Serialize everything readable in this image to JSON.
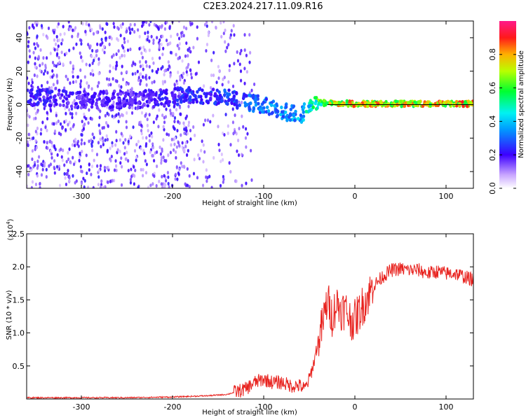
{
  "page_title": "C2E3.2024.217.11.09.R16",
  "colors": {
    "series": "#e8221e",
    "ridge_low": "#6a00ff",
    "ridge_mid": "#00e5ff",
    "ridge_high": "#ff2020",
    "baseline": "#000000"
  },
  "chart_data": [
    {
      "type": "heatmap",
      "title": "",
      "xlabel": "Height of straight line (km)",
      "ylabel": "Frequency (Hz)",
      "xlim": [
        -360,
        130
      ],
      "ylim": [
        -50,
        50
      ],
      "x_ticks": [
        -300,
        -200,
        -100,
        0,
        100
      ],
      "x_tick_labels": [
        "-300",
        "-200",
        "-100",
        "0",
        "100"
      ],
      "y_ticks": [
        -40,
        -20,
        0,
        20,
        40
      ],
      "y_tick_labels": [
        "-40",
        "-20",
        "0",
        "20",
        "40"
      ],
      "colorbar": {
        "label": "Normalized spectral amplitude",
        "range": [
          0,
          1
        ],
        "ticks": [
          0.0,
          0.2,
          0.4,
          0.6,
          0.8
        ],
        "tick_labels": [
          "0.0",
          "0.2",
          "0.4",
          "0.6",
          "0.8"
        ]
      },
      "ridge": {
        "height_km": [
          -360,
          -330,
          -300,
          -270,
          -240,
          -210,
          -180,
          -150,
          -120,
          -100,
          -80,
          -60,
          -40,
          -30,
          -20,
          0,
          50,
          100,
          130
        ],
        "frequency_hz": [
          4,
          4,
          3,
          3,
          3,
          4,
          6,
          5,
          2,
          0,
          -4,
          -6,
          1,
          1,
          1,
          0.5,
          0.5,
          0.5,
          0.5
        ],
        "amplitude": [
          0.25,
          0.25,
          0.22,
          0.22,
          0.22,
          0.25,
          0.28,
          0.3,
          0.35,
          0.38,
          0.42,
          0.45,
          0.7,
          0.8,
          0.85,
          0.9,
          0.9,
          0.9,
          0.9
        ]
      }
    },
    {
      "type": "line",
      "title": "",
      "xlabel": "Height of straight line (km)",
      "ylabel": "SNR (10 * v/v)",
      "y_multiplier": "(x10",
      "y_multiplier_exp": "4",
      "y_multiplier_close": ")",
      "xlim": [
        -360,
        130
      ],
      "ylim": [
        0,
        2.5
      ],
      "x_ticks": [
        -300,
        -200,
        -100,
        0,
        100
      ],
      "x_tick_labels": [
        "-300",
        "-200",
        "-100",
        "0",
        "100"
      ],
      "y_ticks": [
        0.5,
        1.0,
        1.5,
        2.0,
        2.5
      ],
      "y_tick_labels": [
        "0.5",
        "1.0",
        "1.5",
        "2.0",
        "2.5"
      ],
      "series": [
        {
          "x": [
            -360,
            -300,
            -250,
            -200,
            -160,
            -140,
            -120,
            -110,
            -100,
            -90,
            -80,
            -70,
            -60,
            -55,
            -50,
            -45,
            -40,
            -35,
            -30,
            -25,
            -20,
            -15,
            -10,
            -5,
            0,
            10,
            20,
            30,
            40,
            50,
            60,
            70,
            80,
            90,
            100,
            110,
            120,
            130
          ],
          "y": [
            0.02,
            0.02,
            0.02,
            0.03,
            0.05,
            0.07,
            0.15,
            0.25,
            0.3,
            0.25,
            0.25,
            0.2,
            0.2,
            0.15,
            0.3,
            0.55,
            0.9,
            1.15,
            1.5,
            1.25,
            1.45,
            1.35,
            1.35,
            1.2,
            1.2,
            1.45,
            1.7,
            1.85,
            1.95,
            1.97,
            1.95,
            1.95,
            1.9,
            1.93,
            1.9,
            1.9,
            1.85,
            1.8
          ]
        }
      ]
    }
  ]
}
